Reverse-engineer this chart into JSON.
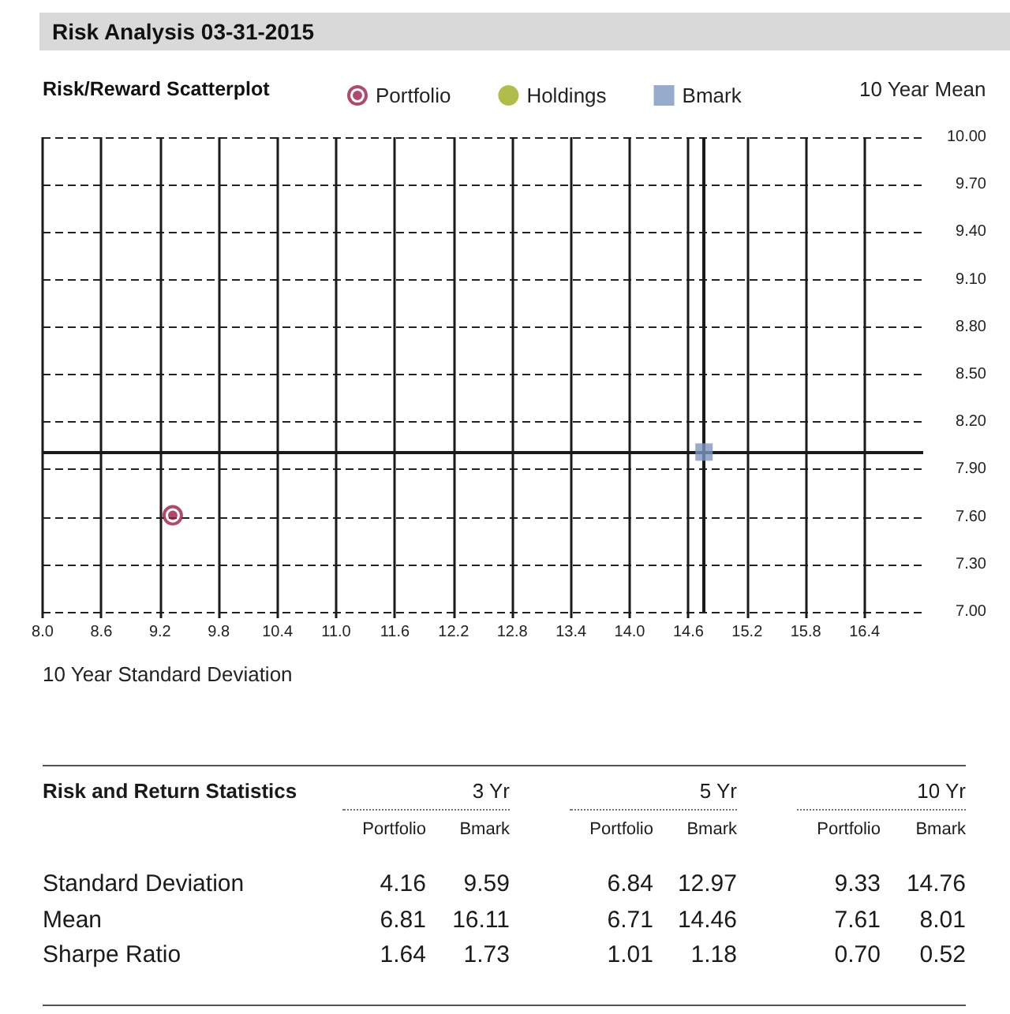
{
  "chart_data": [
    {
      "type": "scatter",
      "title": "Risk Analysis 03-31-2015",
      "subtitle": "Risk/Reward Scatterplot",
      "xlabel": "10 Year Standard Deviation",
      "ylabel": "10 Year Mean",
      "series": [
        {
          "name": "Portfolio",
          "color": "#9e1b45",
          "marker": "circle",
          "x": [
            9.33
          ],
          "values": [
            7.61
          ]
        },
        {
          "name": "Holdings",
          "color": "#9cac1c",
          "marker": "circle"
        },
        {
          "name": "Bmark",
          "color": "#7d97c1",
          "marker": "square",
          "x": [
            14.76
          ],
          "values": [
            8.01
          ]
        }
      ],
      "xlim": [
        8,
        17
      ],
      "xticks": [
        {
          "value": 8,
          "label": "8.0"
        },
        {
          "value": 8.6,
          "label": "8.6"
        },
        {
          "value": 9.2,
          "label": "9.2"
        },
        {
          "value": 9.8,
          "label": "9.8"
        },
        {
          "value": 10.4,
          "label": "10.4"
        },
        {
          "value": 11,
          "label": "11.0"
        },
        {
          "value": 11.6,
          "label": "11.6"
        },
        {
          "value": 12.2,
          "label": "12.2"
        },
        {
          "value": 12.8,
          "label": "12.8"
        },
        {
          "value": 13.4,
          "label": "13.4"
        },
        {
          "value": 14,
          "label": "14.0"
        },
        {
          "value": 14.6,
          "label": "14.6"
        },
        {
          "value": 15.2,
          "label": "15.2"
        },
        {
          "value": 15.8,
          "label": "15.8"
        },
        {
          "value": 16.4,
          "label": "16.4"
        }
      ],
      "ylim": [
        7,
        10
      ],
      "yticks": [
        {
          "value": 7,
          "label": "7.00"
        },
        {
          "value": 7.3,
          "label": "7.30"
        },
        {
          "value": 7.6,
          "label": "7.60"
        },
        {
          "value": 7.9,
          "label": "7.90"
        },
        {
          "value": 8.2,
          "label": "8.20"
        },
        {
          "value": 8.5,
          "label": "8.50"
        },
        {
          "value": 8.8,
          "label": "8.80"
        },
        {
          "value": 9.1,
          "label": "9.10"
        },
        {
          "value": 9.4,
          "label": "9.40"
        },
        {
          "value": 9.7,
          "label": "9.70"
        },
        {
          "value": 10,
          "label": "10.00"
        }
      ],
      "grid": true,
      "legend": "top",
      "ref_lines": [
        {
          "axis": "x",
          "value": 14.76,
          "color": "#1a1a1a"
        },
        {
          "axis": "y",
          "value": 8.01,
          "color": "#1a1a1a"
        }
      ]
    },
    {
      "type": "other",
      "title": "Risk and Return Statistics",
      "annotations": [
        "3 Yr",
        "5 Yr",
        "10 Yr",
        "Portfolio",
        "Bmark",
        "Portfolio",
        "Bmark",
        "Portfolio",
        "Bmark",
        "Standard Deviation",
        "4.16",
        "9.59",
        "6.84",
        "12.97",
        "9.33",
        "14.76",
        "Mean",
        "6.81",
        "16.11",
        "6.71",
        "14.46",
        "7.61",
        "8.01",
        "Sharpe Ratio",
        "1.64",
        "1.73",
        "1.01",
        "1.18",
        "0.70",
        "0.52"
      ]
    }
  ]
}
